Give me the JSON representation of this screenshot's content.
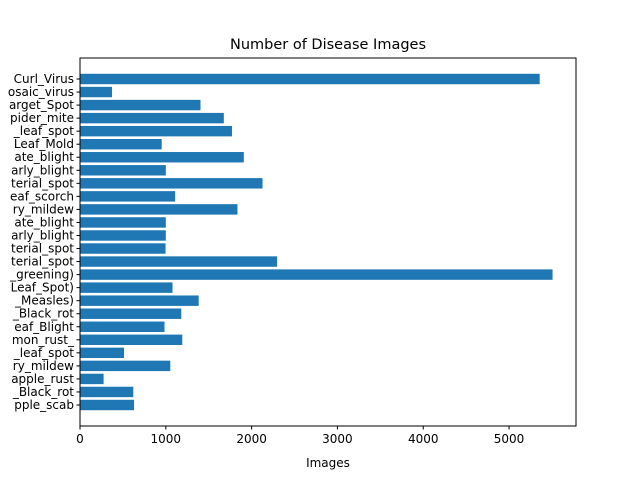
{
  "chart_data": {
    "type": "bar",
    "orientation": "horizontal",
    "title": "Number of Disease Images",
    "xlabel": "Images",
    "ylabel": "",
    "xlim": [
      0,
      5780
    ],
    "xticks": [
      0,
      1000,
      2000,
      3000,
      4000,
      5000
    ],
    "grid": false,
    "categories": [
      "Curl_Virus",
      "osaic_virus",
      "arget_Spot",
      "pider_mite",
      "_leaf_spot",
      "Leaf_Mold",
      "ate_blight",
      "arly_blight",
      "terial_spot",
      "eaf_scorch",
      "ry_mildew",
      "ate_blight",
      "arly_blight",
      "terial_spot",
      "terial_spot",
      "_greening)",
      "Leaf_Spot)",
      "_Measles)",
      "_Black_rot",
      "eaf_Blight",
      "mon_rust_",
      "_leaf_spot",
      "ry_mildew",
      "apple_rust",
      "_Black_rot",
      "pple_scab"
    ],
    "values": [
      5357,
      373,
      1404,
      1676,
      1771,
      952,
      1909,
      1000,
      2127,
      1109,
      1835,
      1000,
      1000,
      997,
      2297,
      5507,
      1078,
      1383,
      1180,
      985,
      1192,
      513,
      1052,
      275,
      621,
      630
    ]
  }
}
